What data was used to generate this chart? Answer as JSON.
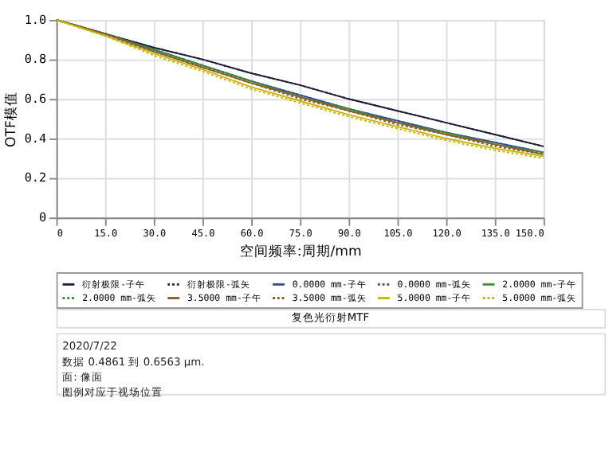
{
  "chart_data": {
    "type": "line",
    "title": "复色光衍射MTF",
    "xlabel": "空间频率:周期/mm",
    "ylabel": "OTF模值",
    "x": [
      0,
      15,
      30,
      45,
      60,
      75,
      90,
      105,
      120,
      135,
      150
    ],
    "xlim": [
      0,
      150
    ],
    "ylim": [
      0,
      1
    ],
    "xticks": [
      {
        "value": 0,
        "label": "0"
      },
      {
        "value": 15,
        "label": "15.0"
      },
      {
        "value": 30,
        "label": "30.0"
      },
      {
        "value": 45,
        "label": "45.0"
      },
      {
        "value": 60,
        "label": "60.0"
      },
      {
        "value": 75,
        "label": "75.0"
      },
      {
        "value": 90,
        "label": "90.0"
      },
      {
        "value": 105,
        "label": "105.0"
      },
      {
        "value": 120,
        "label": "120.0"
      },
      {
        "value": 135,
        "label": "135.0"
      },
      {
        "value": 150,
        "label": "150.0"
      }
    ],
    "yticks": [
      0,
      0.2,
      0.4,
      0.6,
      0.8,
      {
        "value": 1,
        "label": "1.0"
      }
    ],
    "grid": true,
    "legend": "bottom",
    "marker": "none",
    "series": [
      {
        "name": "衍射极限-子午",
        "color": "#1c1c3c",
        "line_style": "solid",
        "values": [
          1,
          0.93,
          0.86,
          0.8,
          0.73,
          0.67,
          0.6,
          0.54,
          0.48,
          0.42,
          0.36
        ]
      },
      {
        "name": "衍射极限-弧矢",
        "color": "#1c1c3c",
        "line_style": "dotted",
        "values": [
          1,
          0.93,
          0.86,
          0.8,
          0.73,
          0.67,
          0.6,
          0.54,
          0.48,
          0.42,
          0.36
        ]
      },
      {
        "name": "0.0000 mm-子午",
        "color": "#2f4f8f",
        "line_style": "solid",
        "values": [
          1,
          0.93,
          0.85,
          0.77,
          0.69,
          0.62,
          0.55,
          0.49,
          0.43,
          0.38,
          0.33
        ]
      },
      {
        "name": "0.0000 mm-弧矢",
        "color": "#2f4f8f",
        "line_style": "dotted",
        "values": [
          1,
          0.93,
          0.85,
          0.77,
          0.69,
          0.62,
          0.55,
          0.49,
          0.43,
          0.38,
          0.33
        ]
      },
      {
        "name": "2.0000 mm-子午",
        "color": "#3c8c3c",
        "line_style": "solid",
        "values": [
          1,
          0.93,
          0.85,
          0.77,
          0.69,
          0.61,
          0.55,
          0.48,
          0.43,
          0.37,
          0.33
        ]
      },
      {
        "name": "2.0000 mm-弧矢",
        "color": "#3c8c3c",
        "line_style": "dotted",
        "values": [
          1,
          0.93,
          0.85,
          0.76,
          0.69,
          0.61,
          0.54,
          0.48,
          0.42,
          0.37,
          0.32
        ]
      },
      {
        "name": "3.5000 mm-子午",
        "color": "#8c5a2c",
        "line_style": "solid",
        "values": [
          1,
          0.93,
          0.84,
          0.76,
          0.68,
          0.61,
          0.54,
          0.48,
          0.42,
          0.37,
          0.32
        ]
      },
      {
        "name": "3.5000 mm-弧矢",
        "color": "#8c5a2c",
        "line_style": "dotted",
        "values": [
          1,
          0.92,
          0.84,
          0.76,
          0.68,
          0.6,
          0.54,
          0.47,
          0.42,
          0.36,
          0.32
        ]
      },
      {
        "name": "5.0000 mm-子午",
        "color": "#c8b400",
        "line_style": "solid",
        "values": [
          1,
          0.92,
          0.83,
          0.75,
          0.66,
          0.59,
          0.52,
          0.46,
          0.4,
          0.35,
          0.31
        ]
      },
      {
        "name": "5.0000 mm-弧矢",
        "color": "#c8b400",
        "line_style": "dotted",
        "values": [
          1,
          0.92,
          0.82,
          0.74,
          0.65,
          0.58,
          0.51,
          0.45,
          0.39,
          0.34,
          0.3
        ]
      }
    ],
    "annotations": [
      "2020/7/22",
      "数据 0.4861 到 0.6563 μm.",
      "面: 像面",
      "图例对应于视场位置"
    ]
  }
}
